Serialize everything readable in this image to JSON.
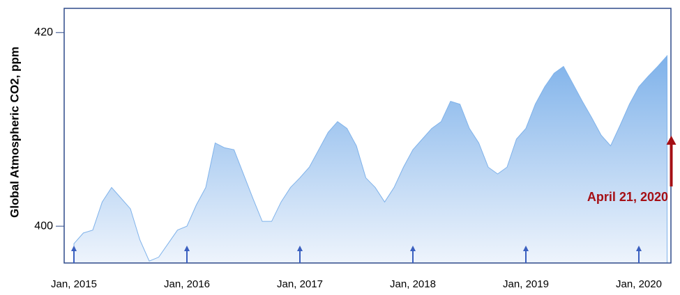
{
  "chart_data": {
    "type": "area",
    "y_label": "Global Atmospheric CO2, ppm",
    "annotation": "April 21, 2020",
    "x": [
      "2015-01",
      "2015-02",
      "2015-03",
      "2015-04",
      "2015-05",
      "2015-06",
      "2015-07",
      "2015-08",
      "2015-09",
      "2015-10",
      "2015-11",
      "2015-12",
      "2016-01",
      "2016-02",
      "2016-03",
      "2016-04",
      "2016-05",
      "2016-06",
      "2016-07",
      "2016-08",
      "2016-09",
      "2016-10",
      "2016-11",
      "2016-12",
      "2017-01",
      "2017-02",
      "2017-03",
      "2017-04",
      "2017-05",
      "2017-06",
      "2017-07",
      "2017-08",
      "2017-09",
      "2017-10",
      "2017-11",
      "2017-12",
      "2018-01",
      "2018-02",
      "2018-03",
      "2018-04",
      "2018-05",
      "2018-06",
      "2018-07",
      "2018-08",
      "2018-09",
      "2018-10",
      "2018-11",
      "2018-12",
      "2019-01",
      "2019-02",
      "2019-03",
      "2019-04",
      "2019-05",
      "2019-06",
      "2019-07",
      "2019-08",
      "2019-09",
      "2019-10",
      "2019-11",
      "2019-12",
      "2020-01",
      "2020-02",
      "2020-03",
      "2020-04"
    ],
    "values": [
      398.2,
      399.3,
      399.6,
      402.5,
      404.0,
      402.9,
      401.8,
      398.6,
      396.4,
      396.8,
      398.2,
      399.6,
      400.0,
      402.2,
      404.0,
      408.6,
      408.1,
      407.9,
      405.4,
      402.9,
      400.5,
      400.5,
      402.5,
      404.0,
      405.0,
      406.1,
      407.9,
      409.7,
      410.8,
      410.1,
      408.3,
      405.0,
      404.0,
      402.5,
      404.0,
      406.1,
      407.9,
      409.0,
      410.1,
      410.8,
      412.9,
      412.6,
      410.1,
      408.6,
      406.1,
      405.4,
      406.1,
      409.0,
      410.1,
      412.6,
      414.4,
      415.8,
      416.5,
      414.7,
      412.9,
      411.2,
      409.4,
      408.3,
      410.4,
      412.6,
      414.4,
      415.5,
      416.5,
      417.6
    ],
    "color": "#7fb2ea",
    "ylim": [
      396.2,
      422.5
    ],
    "yticks": [
      400,
      420
    ],
    "xticks": [
      {
        "value": "2015-01",
        "label": "Jan, 2015"
      },
      {
        "value": "2016-01",
        "label": "Jan, 2016"
      },
      {
        "value": "2017-01",
        "label": "Jan, 2017"
      },
      {
        "value": "2018-01",
        "label": "Jan, 2018"
      },
      {
        "value": "2019-01",
        "label": "Jan, 2019"
      },
      {
        "value": "2020-01",
        "label": "Jan, 2020"
      }
    ],
    "annotation_color": "#a50f15",
    "tick_arrow_color": "#3a5fbf"
  }
}
